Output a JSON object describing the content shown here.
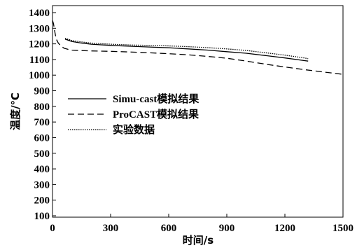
{
  "chart_data": {
    "type": "line",
    "xlabel": "时间/s",
    "ylabel": "温度/℃",
    "xlim": [
      0,
      1500
    ],
    "ylim": [
      100,
      1450
    ],
    "xticks": [
      0,
      300,
      600,
      900,
      1200,
      1500
    ],
    "yticks": [
      100,
      200,
      300,
      400,
      500,
      600,
      700,
      800,
      900,
      1000,
      1100,
      1200,
      1300,
      1400
    ],
    "grid": false,
    "legend_position": "center-left",
    "series": [
      {
        "name": "Simu-cast模拟结果",
        "style": "solid",
        "color": "#000000",
        "x": [
          65,
          100,
          150,
          200,
          300,
          400,
          500,
          600,
          700,
          800,
          900,
          1000,
          1100,
          1200,
          1300,
          1320
        ],
        "y": [
          1230,
          1215,
          1205,
          1198,
          1190,
          1185,
          1180,
          1175,
          1168,
          1160,
          1150,
          1140,
          1125,
          1110,
          1093,
          1090
        ]
      },
      {
        "name": "ProCAST模拟结果",
        "style": "dashed",
        "color": "#000000",
        "x": [
          0,
          5,
          10,
          15,
          20,
          30,
          45,
          60,
          80,
          100,
          150,
          200,
          300,
          400,
          500,
          600,
          700,
          800,
          900,
          1000,
          1100,
          1200,
          1300,
          1400,
          1500
        ],
        "y": [
          1350,
          1330,
          1290,
          1255,
          1230,
          1205,
          1185,
          1172,
          1165,
          1160,
          1157,
          1155,
          1152,
          1148,
          1143,
          1137,
          1130,
          1120,
          1108,
          1090,
          1070,
          1052,
          1035,
          1020,
          1005
        ]
      },
      {
        "name": "实验数据",
        "style": "dotted",
        "color": "#000000",
        "x": [
          65,
          100,
          150,
          200,
          300,
          400,
          500,
          600,
          700,
          800,
          900,
          1000,
          1100,
          1200,
          1300,
          1320
        ],
        "y": [
          1235,
          1222,
          1212,
          1205,
          1198,
          1193,
          1190,
          1187,
          1182,
          1176,
          1168,
          1158,
          1143,
          1128,
          1110,
          1105
        ]
      }
    ]
  }
}
